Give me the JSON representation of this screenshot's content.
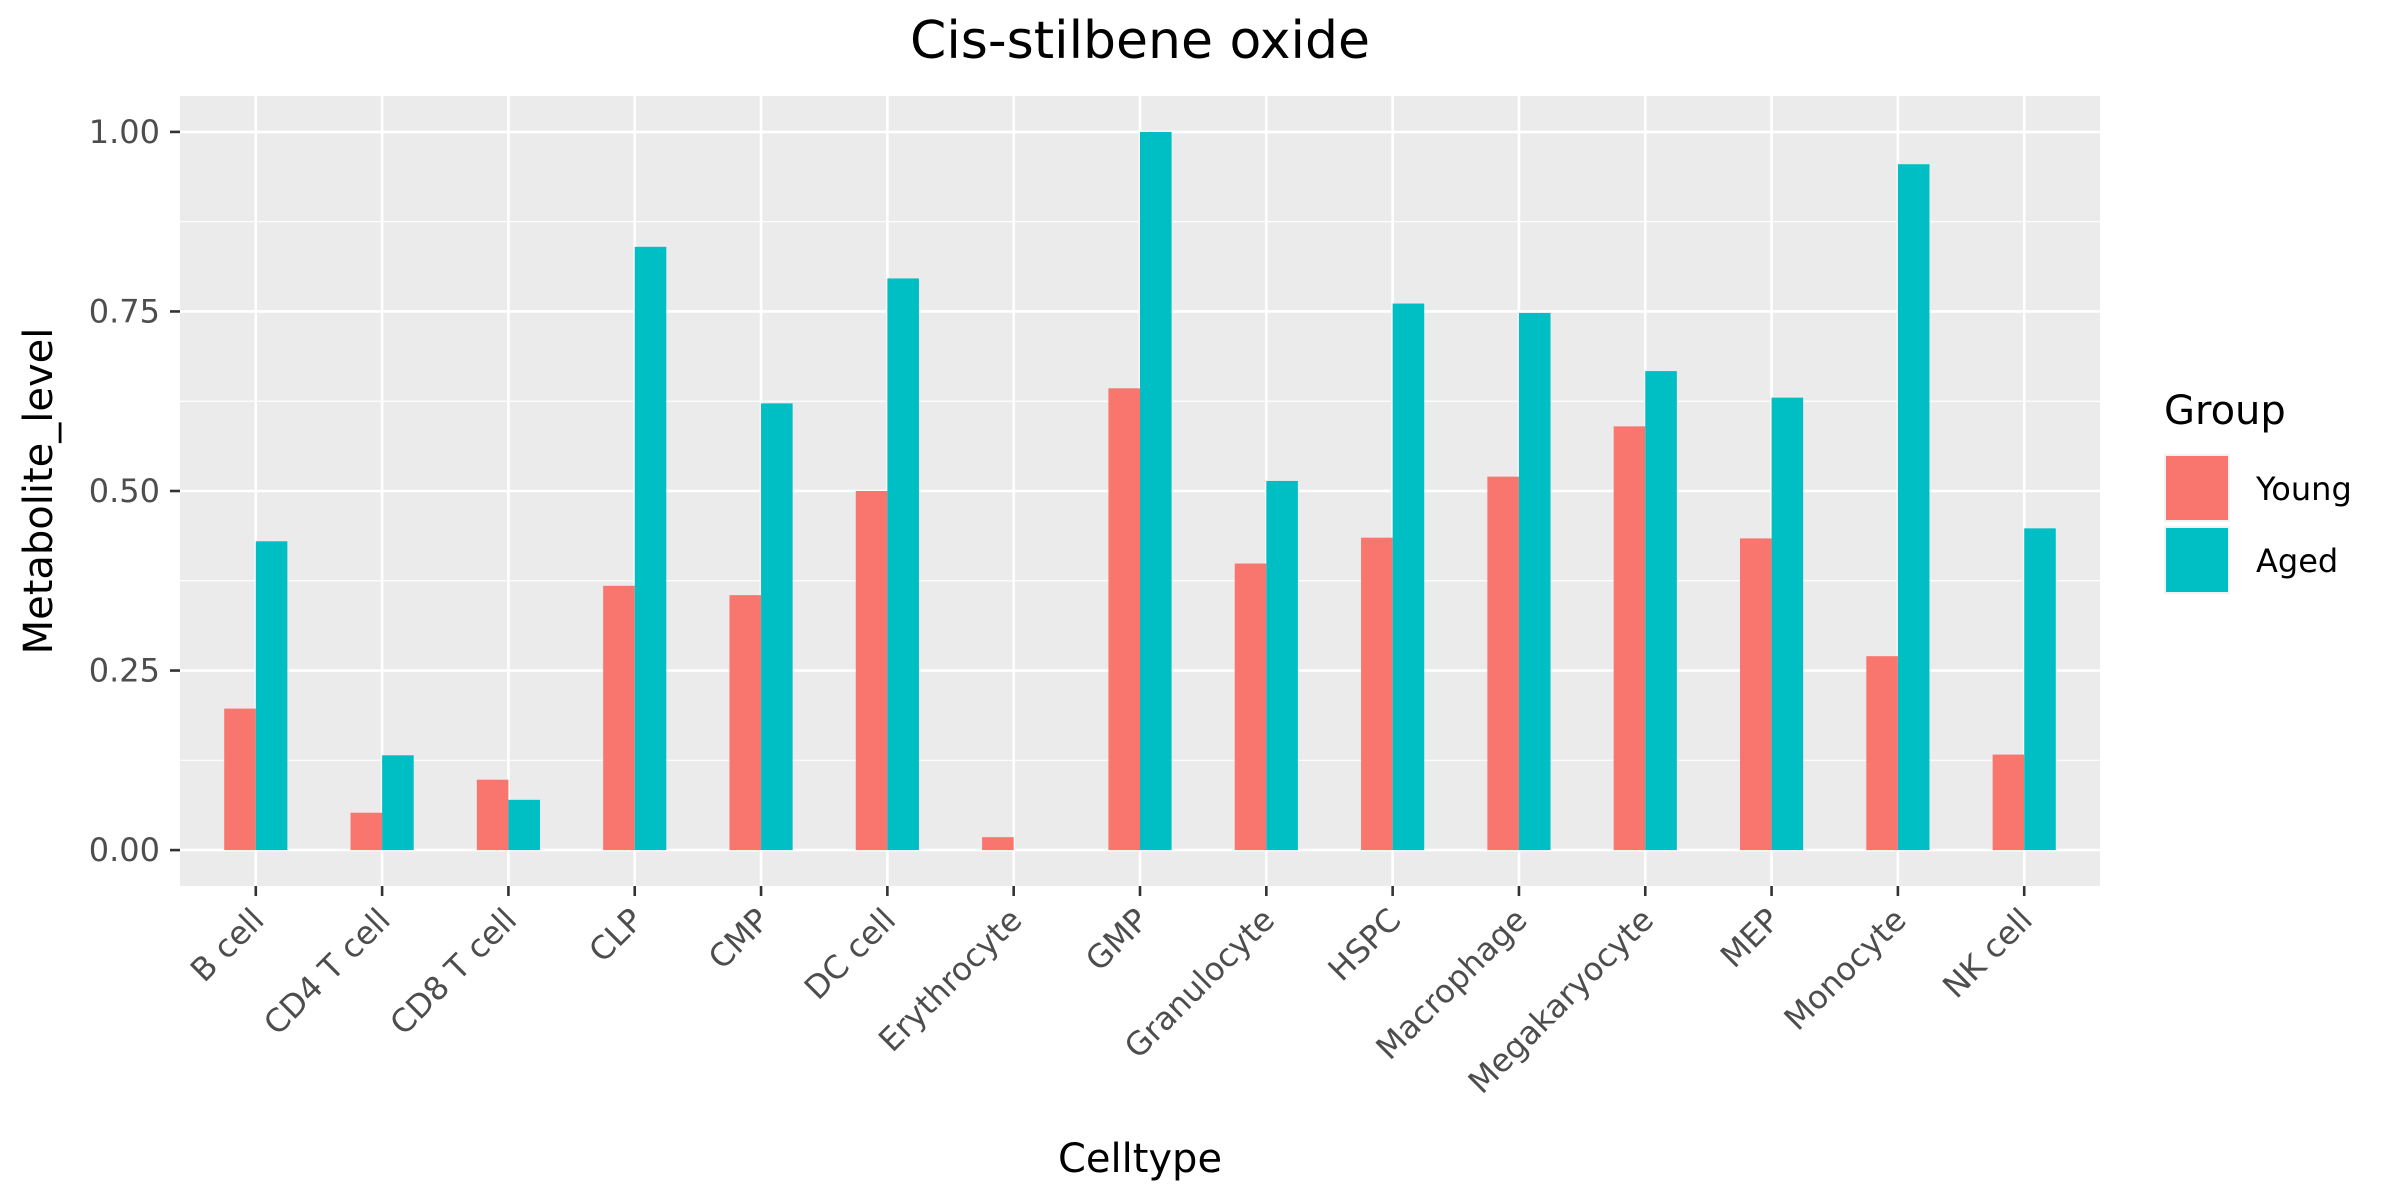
{
  "chart_data": {
    "type": "bar",
    "title": "Cis-stilbene oxide",
    "xlabel": "Celltype",
    "ylabel": "Metabolite_level",
    "categories": [
      "B cell",
      "CD4 T cell",
      "CD8 T cell",
      "CLP",
      "CMP",
      "DC cell",
      "Erythrocyte",
      "GMP",
      "Granulocyte",
      "HSPC",
      "Macrophage",
      "Megakaryocyte",
      "MEP",
      "Monocyte",
      "NK cell"
    ],
    "series": [
      {
        "name": "Young",
        "color": "#F8766D",
        "values": [
          0.197,
          0.052,
          0.098,
          0.368,
          0.355,
          0.5,
          0.018,
          0.643,
          0.399,
          0.435,
          0.52,
          0.59,
          0.434,
          0.27,
          0.133
        ]
      },
      {
        "name": "Aged",
        "color": "#00BFC4",
        "values": [
          0.43,
          0.132,
          0.07,
          0.84,
          0.622,
          0.796,
          0.0,
          1.0,
          0.514,
          0.761,
          0.748,
          0.667,
          0.63,
          0.955,
          0.448
        ]
      }
    ],
    "ylim": [
      -0.05,
      1.05
    ],
    "yticks": [
      0.0,
      0.25,
      0.5,
      0.75,
      1.0
    ],
    "ytick_labels": [
      "0.00",
      "0.25",
      "0.50",
      "0.75",
      "1.00"
    ],
    "grid": true,
    "legend": {
      "title": "Group",
      "position": "right"
    }
  }
}
